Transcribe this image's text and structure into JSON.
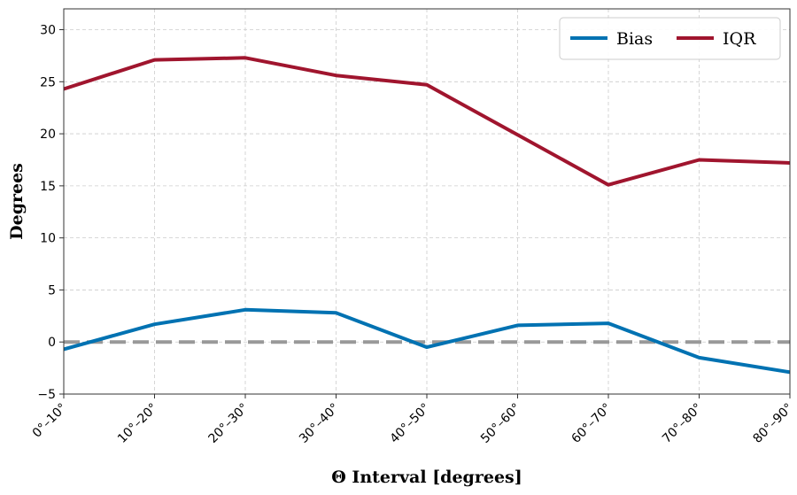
{
  "chart_data": {
    "type": "line",
    "categories": [
      "0°–10°",
      "10°–20°",
      "20°–30°",
      "30°–40°",
      "40°–50°",
      "50°–60°",
      "60°–70°",
      "70°–80°",
      "80°–90°"
    ],
    "series": [
      {
        "name": "Bias",
        "color": "#0072B2",
        "values": [
          -0.7,
          1.7,
          3.1,
          2.8,
          -0.5,
          1.6,
          1.8,
          -1.5,
          -2.9
        ]
      },
      {
        "name": "IQR",
        "color": "#A0152E",
        "values": [
          24.3,
          27.1,
          27.3,
          25.6,
          24.7,
          19.9,
          15.1,
          17.5,
          17.2
        ]
      }
    ],
    "reference_line": {
      "value": 0,
      "color": "#999999",
      "style": "dashed"
    },
    "xlabel": "Θ Interval [degrees]",
    "ylabel": "Degrees",
    "ylim": [
      -5,
      32
    ],
    "yticks": [
      -5,
      0,
      5,
      10,
      15,
      20,
      25,
      30
    ],
    "grid": true,
    "legend_position": "top-right"
  }
}
